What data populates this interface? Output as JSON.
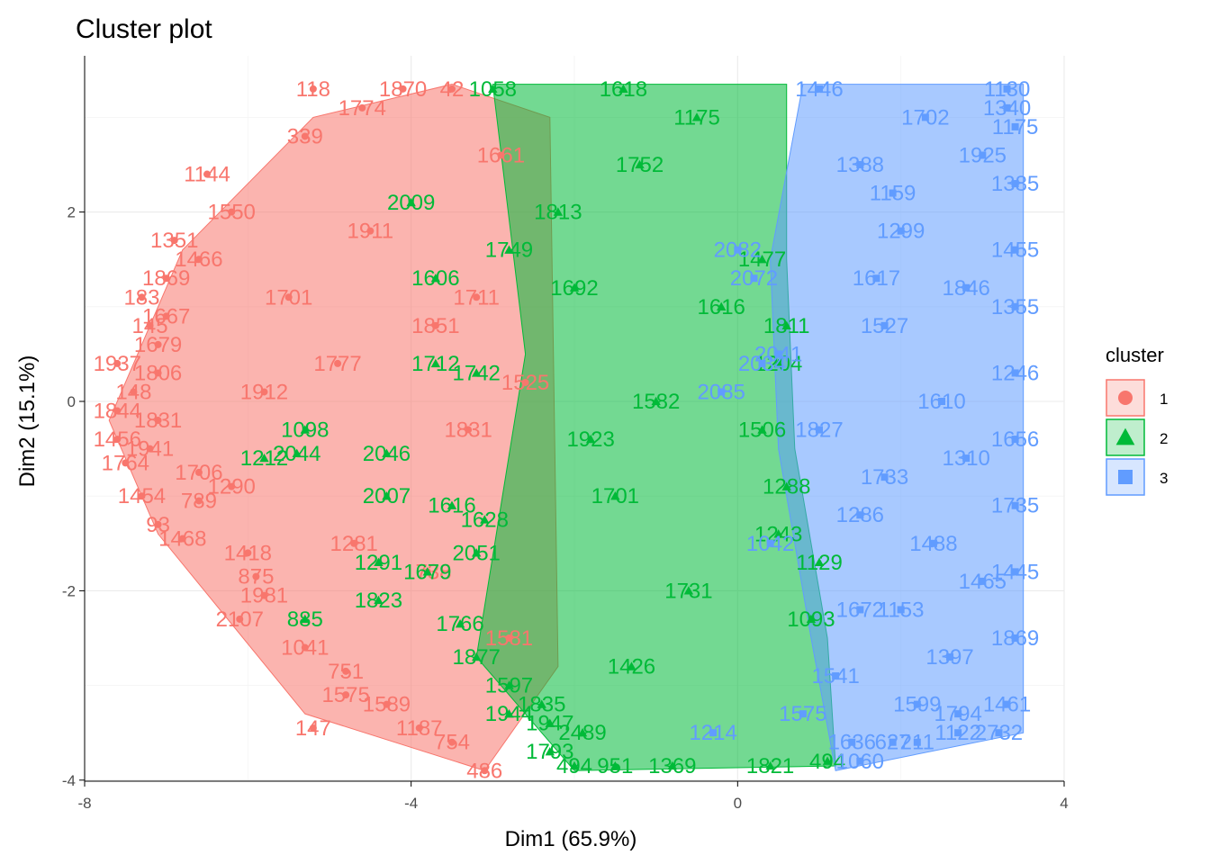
{
  "chart_data": {
    "type": "scatter",
    "title": "Cluster plot",
    "xlabel": "Dim1 (65.9%)",
    "ylabel": "Dim2 (15.1%)",
    "xlim": [
      -8,
      4
    ],
    "ylim": [
      -4,
      3.5
    ],
    "xticks": [
      -8,
      -4,
      0,
      4
    ],
    "yticks": [
      -4,
      -2,
      0,
      2
    ],
    "grid": true,
    "legend": {
      "title": "cluster",
      "position": "right"
    },
    "series": [
      {
        "name": "1",
        "color": "#F8766D",
        "shape": "circle",
        "points": [
          {
            "x": -5.2,
            "y": 3.3,
            "label": "118"
          },
          {
            "x": -4.1,
            "y": 3.3,
            "label": "1870"
          },
          {
            "x": -4.6,
            "y": 3.1,
            "label": "1774"
          },
          {
            "x": -5.3,
            "y": 2.8,
            "label": "339"
          },
          {
            "x": -6.5,
            "y": 2.4,
            "label": "1144"
          },
          {
            "x": -6.2,
            "y": 2.0,
            "label": "1550"
          },
          {
            "x": -6.9,
            "y": 1.7,
            "label": "1351"
          },
          {
            "x": -6.6,
            "y": 1.5,
            "label": "1466"
          },
          {
            "x": -7.0,
            "y": 1.3,
            "label": "1869"
          },
          {
            "x": -7.3,
            "y": 1.1,
            "label": "183"
          },
          {
            "x": -7.0,
            "y": 0.9,
            "label": "1667"
          },
          {
            "x": -7.2,
            "y": 0.8,
            "label": "145"
          },
          {
            "x": -7.1,
            "y": 0.6,
            "label": "1679"
          },
          {
            "x": -7.6,
            "y": 0.4,
            "label": "1937"
          },
          {
            "x": -7.1,
            "y": 0.3,
            "label": "1806"
          },
          {
            "x": -7.4,
            "y": 0.1,
            "label": "148"
          },
          {
            "x": -7.6,
            "y": -0.1,
            "label": "1844"
          },
          {
            "x": -7.1,
            "y": -0.2,
            "label": "1831"
          },
          {
            "x": -7.6,
            "y": -0.4,
            "label": "1456"
          },
          {
            "x": -7.2,
            "y": -0.5,
            "label": "1941"
          },
          {
            "x": -7.5,
            "y": -0.65,
            "label": "1764"
          },
          {
            "x": -6.6,
            "y": -0.75,
            "label": "1706"
          },
          {
            "x": -7.3,
            "y": -1.0,
            "label": "1454"
          },
          {
            "x": -6.6,
            "y": -1.05,
            "label": "789"
          },
          {
            "x": -6.2,
            "y": -0.9,
            "label": "1290"
          },
          {
            "x": -7.1,
            "y": -1.3,
            "label": "93"
          },
          {
            "x": -6.8,
            "y": -1.45,
            "label": "1468"
          },
          {
            "x": -6.0,
            "y": -1.6,
            "label": "1418"
          },
          {
            "x": -5.9,
            "y": -1.85,
            "label": "875"
          },
          {
            "x": -5.8,
            "y": -2.05,
            "label": "1981"
          },
          {
            "x": -6.1,
            "y": -2.3,
            "label": "2107"
          },
          {
            "x": -5.3,
            "y": -2.6,
            "label": "1041"
          },
          {
            "x": -4.8,
            "y": -2.85,
            "label": "751"
          },
          {
            "x": -4.8,
            "y": -3.1,
            "label": "1575"
          },
          {
            "x": -4.3,
            "y": -3.2,
            "label": "1589"
          },
          {
            "x": -5.2,
            "y": -3.45,
            "label": "147"
          },
          {
            "x": -3.9,
            "y": -3.45,
            "label": "1187"
          },
          {
            "x": -3.5,
            "y": -3.6,
            "label": "754"
          },
          {
            "x": -3.1,
            "y": -3.9,
            "label": "486"
          },
          {
            "x": -3.5,
            "y": 3.3,
            "label": "42"
          },
          {
            "x": -3.7,
            "y": 0.8,
            "label": "1851"
          },
          {
            "x": -3.3,
            "y": -0.3,
            "label": "1831"
          },
          {
            "x": -3.2,
            "y": 1.1,
            "label": "1711"
          },
          {
            "x": -2.9,
            "y": 2.6,
            "label": "1661"
          },
          {
            "x": -2.8,
            "y": -2.5,
            "label": "1581"
          },
          {
            "x": -2.6,
            "y": 0.2,
            "label": "1525"
          },
          {
            "x": -3.8,
            "y": -1.8,
            "label": "1738"
          },
          {
            "x": -4.5,
            "y": 1.8,
            "label": "1911"
          },
          {
            "x": -4.9,
            "y": 0.4,
            "label": "1777"
          },
          {
            "x": -5.5,
            "y": 1.1,
            "label": "1701"
          },
          {
            "x": -5.8,
            "y": 0.1,
            "label": "1912"
          },
          {
            "x": -4.7,
            "y": -1.5,
            "label": "1281"
          }
        ]
      },
      {
        "name": "2",
        "color": "#00BA38",
        "shape": "triangle",
        "points": [
          {
            "x": -3.0,
            "y": 3.3,
            "label": "1058"
          },
          {
            "x": -4.0,
            "y": 2.1,
            "label": "2009"
          },
          {
            "x": -3.7,
            "y": 1.3,
            "label": "1606"
          },
          {
            "x": -2.8,
            "y": 1.6,
            "label": "1749"
          },
          {
            "x": -3.7,
            "y": 0.4,
            "label": "1712"
          },
          {
            "x": -3.2,
            "y": 0.3,
            "label": "1742"
          },
          {
            "x": -5.8,
            "y": -0.6,
            "label": "1212"
          },
          {
            "x": -5.4,
            "y": -0.55,
            "label": "2044"
          },
          {
            "x": -4.3,
            "y": -0.55,
            "label": "2046"
          },
          {
            "x": -5.3,
            "y": -0.3,
            "label": "1098"
          },
          {
            "x": -4.3,
            "y": -1.0,
            "label": "2007"
          },
          {
            "x": -3.5,
            "y": -1.1,
            "label": "1616"
          },
          {
            "x": -3.1,
            "y": -1.25,
            "label": "1628"
          },
          {
            "x": -4.4,
            "y": -1.7,
            "label": "1291"
          },
          {
            "x": -3.8,
            "y": -1.8,
            "label": "1679"
          },
          {
            "x": -4.4,
            "y": -2.1,
            "label": "1823"
          },
          {
            "x": -5.3,
            "y": -2.3,
            "label": "885"
          },
          {
            "x": -3.4,
            "y": -2.35,
            "label": "1766"
          },
          {
            "x": -3.2,
            "y": -1.6,
            "label": "2051"
          },
          {
            "x": -3.2,
            "y": -2.7,
            "label": "1877"
          },
          {
            "x": -2.8,
            "y": -3.0,
            "label": "1597"
          },
          {
            "x": -2.4,
            "y": -3.2,
            "label": "1835"
          },
          {
            "x": -2.8,
            "y": -3.3,
            "label": "1944"
          },
          {
            "x": -2.3,
            "y": -3.4,
            "label": "1947"
          },
          {
            "x": -1.9,
            "y": -3.5,
            "label": "2489"
          },
          {
            "x": -2.3,
            "y": -3.7,
            "label": "1793"
          },
          {
            "x": -2.0,
            "y": -3.85,
            "label": "494"
          },
          {
            "x": -1.5,
            "y": -3.85,
            "label": "951"
          },
          {
            "x": -0.8,
            "y": -3.85,
            "label": "1369"
          },
          {
            "x": 0.4,
            "y": -3.85,
            "label": "1821"
          },
          {
            "x": 1.1,
            "y": -3.8,
            "label": "494"
          },
          {
            "x": 0.9,
            "y": -2.3,
            "label": "1093"
          },
          {
            "x": 1.0,
            "y": -1.7,
            "label": "1129"
          },
          {
            "x": 0.5,
            "y": -1.4,
            "label": "1243"
          },
          {
            "x": 0.6,
            "y": -0.9,
            "label": "1288"
          },
          {
            "x": 0.3,
            "y": -0.3,
            "label": "1506"
          },
          {
            "x": 0.5,
            "y": 0.4,
            "label": "1204"
          },
          {
            "x": 0.6,
            "y": 0.8,
            "label": "1811"
          },
          {
            "x": 0.3,
            "y": 1.5,
            "label": "1477"
          },
          {
            "x": -1.2,
            "y": 2.5,
            "label": "1752"
          },
          {
            "x": -1.4,
            "y": 3.3,
            "label": "1618"
          },
          {
            "x": -0.5,
            "y": 3.0,
            "label": "1175"
          },
          {
            "x": -2.0,
            "y": 1.2,
            "label": "1692"
          },
          {
            "x": -1.0,
            "y": 0.0,
            "label": "1582"
          },
          {
            "x": -1.5,
            "y": -1.0,
            "label": "1701"
          },
          {
            "x": -0.6,
            "y": -2.0,
            "label": "1731"
          },
          {
            "x": -1.3,
            "y": -2.8,
            "label": "1426"
          },
          {
            "x": -0.2,
            "y": 1.0,
            "label": "1616"
          },
          {
            "x": -2.2,
            "y": 2.0,
            "label": "1813"
          },
          {
            "x": -1.8,
            "y": -0.4,
            "label": "1923"
          }
        ]
      },
      {
        "name": "3",
        "color": "#619CFF",
        "shape": "square",
        "points": [
          {
            "x": 1.0,
            "y": 3.3,
            "label": "1446"
          },
          {
            "x": 3.3,
            "y": 3.3,
            "label": "1130"
          },
          {
            "x": 3.3,
            "y": 3.1,
            "label": "1340"
          },
          {
            "x": 3.4,
            "y": 2.9,
            "label": "1175"
          },
          {
            "x": 3.4,
            "y": 2.3,
            "label": "1385"
          },
          {
            "x": 3.4,
            "y": 1.6,
            "label": "1455"
          },
          {
            "x": 3.4,
            "y": 1.0,
            "label": "1355"
          },
          {
            "x": 3.4,
            "y": 0.3,
            "label": "1246"
          },
          {
            "x": 3.4,
            "y": -0.4,
            "label": "1656"
          },
          {
            "x": 3.4,
            "y": -1.1,
            "label": "1735"
          },
          {
            "x": 3.4,
            "y": -1.8,
            "label": "1445"
          },
          {
            "x": 3.4,
            "y": -2.5,
            "label": "1869"
          },
          {
            "x": 3.3,
            "y": -3.2,
            "label": "1461"
          },
          {
            "x": 3.2,
            "y": -3.5,
            "label": "2732"
          },
          {
            "x": 2.7,
            "y": -3.5,
            "label": "1122"
          },
          {
            "x": 2.2,
            "y": -3.6,
            "label": "211"
          },
          {
            "x": 1.9,
            "y": -3.6,
            "label": "627"
          },
          {
            "x": 1.4,
            "y": -3.6,
            "label": "1636"
          },
          {
            "x": 1.5,
            "y": -3.8,
            "label": "1060"
          },
          {
            "x": 2.2,
            "y": -3.2,
            "label": "1599"
          },
          {
            "x": 2.7,
            "y": -3.3,
            "label": "1794"
          },
          {
            "x": -0.2,
            "y": 0.1,
            "label": "2085"
          },
          {
            "x": 0.3,
            "y": 0.4,
            "label": "2034"
          },
          {
            "x": 0.0,
            "y": 1.6,
            "label": "2082"
          },
          {
            "x": 0.2,
            "y": 1.3,
            "label": "2072"
          },
          {
            "x": 0.5,
            "y": 0.5,
            "label": "2041"
          },
          {
            "x": 1.5,
            "y": 2.5,
            "label": "1388"
          },
          {
            "x": 2.0,
            "y": 1.8,
            "label": "1299"
          },
          {
            "x": 1.8,
            "y": 0.8,
            "label": "1527"
          },
          {
            "x": 2.5,
            "y": 0.0,
            "label": "1610"
          },
          {
            "x": 1.8,
            "y": -0.8,
            "label": "1733"
          },
          {
            "x": 2.4,
            "y": -1.5,
            "label": "1488"
          },
          {
            "x": 1.5,
            "y": -2.2,
            "label": "1672"
          },
          {
            "x": 2.6,
            "y": -2.7,
            "label": "1397"
          },
          {
            "x": 1.2,
            "y": -2.9,
            "label": "1541"
          },
          {
            "x": 1.5,
            "y": -1.2,
            "label": "1286"
          },
          {
            "x": 2.3,
            "y": 3.0,
            "label": "1702"
          },
          {
            "x": 1.9,
            "y": 2.2,
            "label": "1159"
          },
          {
            "x": 2.8,
            "y": 1.2,
            "label": "1846"
          },
          {
            "x": 2.8,
            "y": -0.6,
            "label": "1310"
          },
          {
            "x": 0.4,
            "y": -1.5,
            "label": "1042"
          },
          {
            "x": -0.3,
            "y": -3.5,
            "label": "1214"
          },
          {
            "x": 0.8,
            "y": -3.3,
            "label": "1575"
          },
          {
            "x": 1.7,
            "y": 1.3,
            "label": "1617"
          },
          {
            "x": 3.0,
            "y": 2.6,
            "label": "1925"
          },
          {
            "x": 3.0,
            "y": -1.9,
            "label": "1465"
          },
          {
            "x": 1.0,
            "y": -0.3,
            "label": "1827"
          },
          {
            "x": 2.0,
            "y": -2.2,
            "label": "1153"
          }
        ]
      }
    ]
  }
}
